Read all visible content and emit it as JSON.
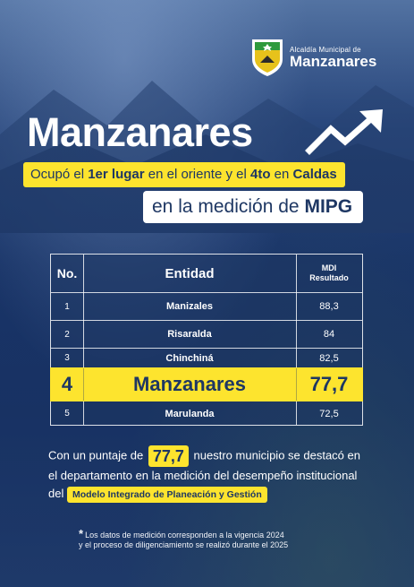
{
  "logo": {
    "top_text": "Alcaldía Municipal de",
    "main_text": "Manzanares",
    "colors": {
      "green": "#2e9a3c",
      "gold": "#e7c21b",
      "white": "#ffffff"
    }
  },
  "title": "Manzanares",
  "subtitle_yellow": {
    "part1": "Ocupó el ",
    "bold1": "1er lugar",
    "part2": " en el oriente y el ",
    "bold2": "4to",
    "part3": " en ",
    "bold3": "Caldas"
  },
  "subtitle_white": {
    "part1": "en la medición de ",
    "bold1": "MIPG"
  },
  "table": {
    "headers": {
      "no": "No.",
      "entidad": "Entidad",
      "mdi_line1": "MDI",
      "mdi_line2": "Resultado"
    },
    "rows": [
      {
        "no": "1",
        "entidad": "Manizales",
        "mdi": "88,3"
      },
      {
        "no": "2",
        "entidad": "Risaralda",
        "mdi": "84"
      },
      {
        "no": "3",
        "entidad": "Chinchiná",
        "mdi": "82,5"
      },
      {
        "no": "4",
        "entidad": "Manzanares",
        "mdi": "77,7"
      },
      {
        "no": "5",
        "entidad": "Marulanda",
        "mdi": "72,5"
      }
    ]
  },
  "paragraph": {
    "part1": "Con un puntaje de ",
    "score": "77,7",
    "part2": " nuestro municipio se destacó en el departamento en la medición del desempeño institucional del ",
    "mipg_full": "Modelo Integrado de Planeación y Gestión"
  },
  "note": {
    "star": "*",
    "line1": "Los datos de medición corresponden a la vigencia 2024",
    "line2": "y el proceso de diligenciamiento se realizó durante el 2025"
  },
  "colors": {
    "accent_yellow": "#fde42e",
    "navy": "#1e3763"
  }
}
